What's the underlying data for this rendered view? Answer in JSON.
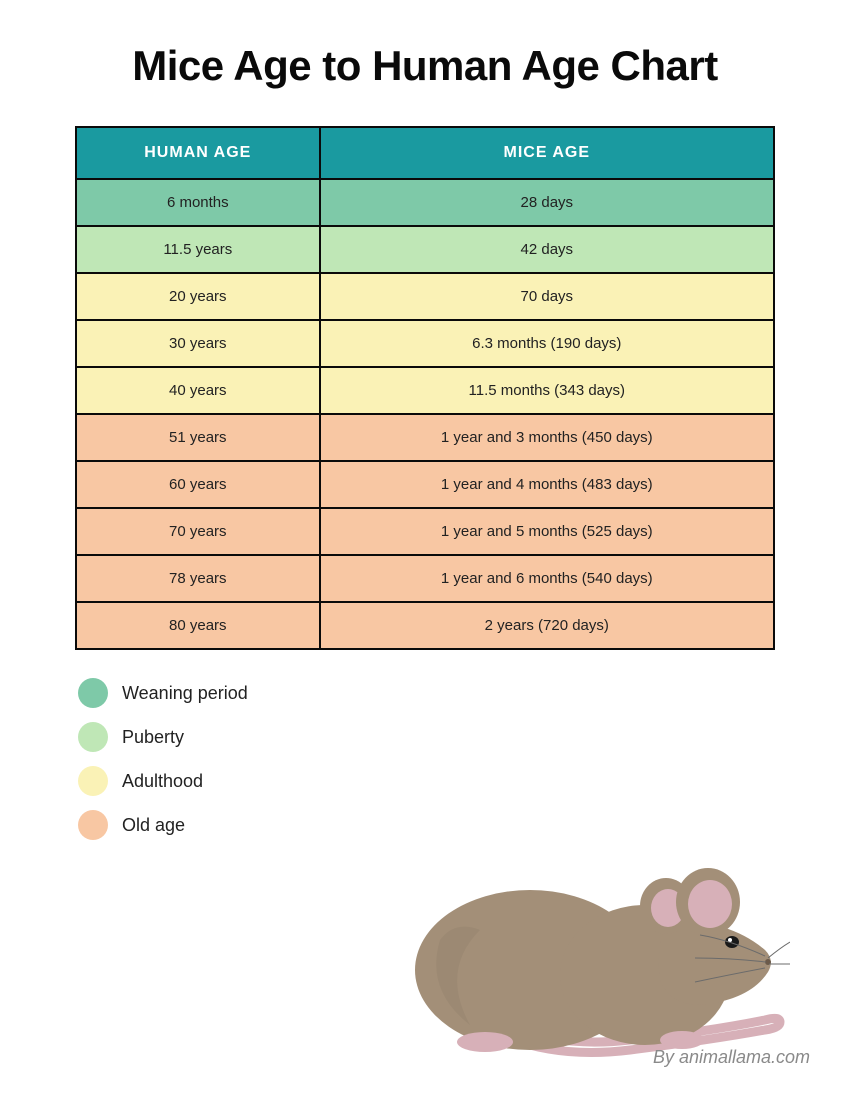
{
  "title": "Mice Age to Human Age Chart",
  "table": {
    "header_bg": "#1a9aa0",
    "columns": [
      "HUMAN AGE",
      "MICE AGE"
    ],
    "col_widths_pct": [
      35,
      65
    ],
    "border_color": "#0a0a0a",
    "cell_fontsize": 15,
    "header_fontsize": 16,
    "rows": [
      {
        "human": "6 months",
        "mice": "28 days",
        "bg": "#7ec9a8"
      },
      {
        "human": "11.5 years",
        "mice": "42 days",
        "bg": "#bfe7b6"
      },
      {
        "human": "20 years",
        "mice": "70 days",
        "bg": "#faf2b6"
      },
      {
        "human": "30 years",
        "mice": "6.3 months (190 days)",
        "bg": "#faf2b6"
      },
      {
        "human": "40 years",
        "mice": "11.5 months (343 days)",
        "bg": "#faf2b6"
      },
      {
        "human": "51 years",
        "mice": "1 year and 3 months (450 days)",
        "bg": "#f8c7a3"
      },
      {
        "human": "60 years",
        "mice": "1 year and 4 months (483 days)",
        "bg": "#f8c7a3"
      },
      {
        "human": "70 years",
        "mice": "1 year and 5 months (525 days)",
        "bg": "#f8c7a3"
      },
      {
        "human": "78 years",
        "mice": "1 year and 6 months (540 days)",
        "bg": "#f8c7a3"
      },
      {
        "human": "80 years",
        "mice": "2 years (720 days)",
        "bg": "#f8c7a3"
      }
    ]
  },
  "legend": [
    {
      "label": "Weaning period",
      "color": "#7ec9a8"
    },
    {
      "label": "Puberty",
      "color": "#bfe7b6"
    },
    {
      "label": "Adulthood",
      "color": "#faf2b6"
    },
    {
      "label": "Old age",
      "color": "#f8c7a3"
    }
  ],
  "mouse_illustration": {
    "body_color": "#a38f78",
    "ear_inner_color": "#d7b0b8",
    "tail_color": "#d7b0b8",
    "eye_color": "#1a1a1a",
    "whisker_color": "#6b6b6b"
  },
  "credit": "By animallama.com",
  "title_fontsize": 42,
  "title_weight": 900,
  "background_color": "#ffffff"
}
